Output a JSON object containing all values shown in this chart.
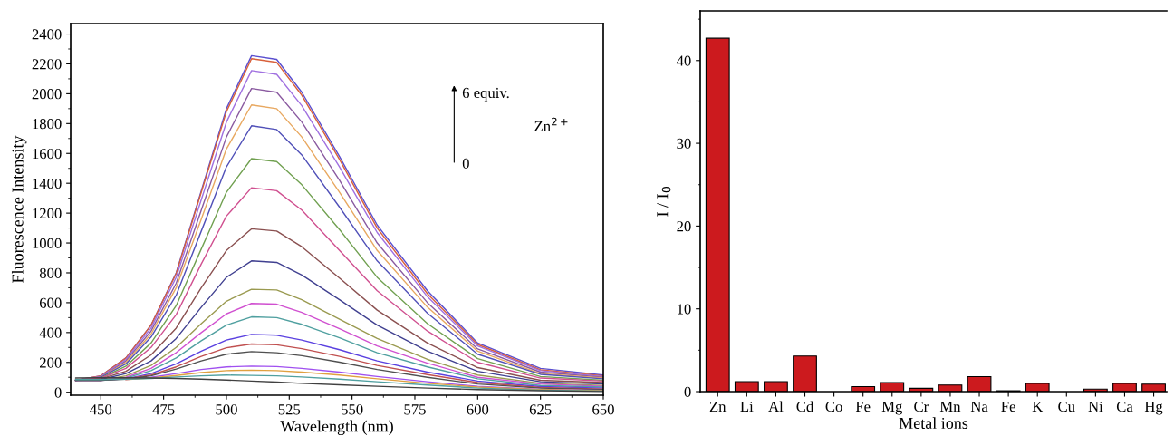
{
  "chart_data": [
    {
      "type": "line",
      "xlabel": "Wavelength (nm)",
      "ylabel": "Fluorescence Intensity",
      "x": [
        440,
        450,
        460,
        470,
        480,
        490,
        500,
        510,
        520,
        530,
        545,
        560,
        580,
        600,
        625,
        650
      ],
      "xlim": [
        438,
        650
      ],
      "ylim": [
        -20,
        2470
      ],
      "xticks": [
        450,
        475,
        500,
        525,
        550,
        575,
        600,
        625,
        650
      ],
      "yticks": [
        0,
        200,
        400,
        600,
        800,
        1000,
        1200,
        1400,
        1600,
        1800,
        2000,
        2200,
        2400
      ],
      "grid": false,
      "marker": "none",
      "line_style": "solid",
      "annotations": [
        "6 equiv.",
        "0",
        "Zn$^{2+}$"
      ],
      "series": [
        {
          "color": "#5a4fcf",
          "values": [
            80,
            110,
            230,
            450,
            800,
            1350,
            1900,
            2255,
            2230,
            2010,
            1580,
            1120,
            680,
            330,
            160,
            115
          ]
        },
        {
          "color": "#d8603a",
          "values": [
            80,
            110,
            230,
            450,
            795,
            1340,
            1880,
            2235,
            2210,
            1990,
            1560,
            1100,
            660,
            320,
            150,
            110
          ]
        },
        {
          "color": "#a070e0",
          "values": [
            80,
            105,
            220,
            430,
            770,
            1290,
            1810,
            2155,
            2130,
            1920,
            1510,
            1070,
            640,
            310,
            145,
            105
          ]
        },
        {
          "color": "#8a5aa0",
          "values": [
            80,
            100,
            210,
            410,
            730,
            1220,
            1710,
            2035,
            2010,
            1810,
            1420,
            1000,
            600,
            290,
            135,
            100
          ]
        },
        {
          "color": "#e8a860",
          "values": [
            80,
            100,
            200,
            390,
            700,
            1160,
            1630,
            1925,
            1900,
            1710,
            1340,
            950,
            570,
            275,
            125,
            95
          ]
        },
        {
          "color": "#5050b8",
          "values": [
            80,
            100,
            190,
            370,
            650,
            1080,
            1510,
            1785,
            1760,
            1590,
            1240,
            880,
            530,
            255,
            120,
            90
          ]
        },
        {
          "color": "#70a050",
          "values": [
            80,
            95,
            175,
            330,
            580,
            960,
            1340,
            1565,
            1545,
            1390,
            1090,
            770,
            460,
            225,
            105,
            80
          ]
        },
        {
          "color": "#d05090",
          "values": [
            80,
            95,
            160,
            300,
            520,
            860,
            1180,
            1370,
            1350,
            1220,
            950,
            680,
            410,
            200,
            95,
            75
          ]
        },
        {
          "color": "#8a5050",
          "values": [
            80,
            90,
            140,
            250,
            430,
            700,
            950,
            1095,
            1080,
            975,
            765,
            550,
            330,
            165,
            80,
            65
          ]
        },
        {
          "color": "#404090",
          "values": [
            80,
            85,
            125,
            210,
            360,
            570,
            770,
            880,
            870,
            785,
            620,
            450,
            275,
            140,
            70,
            55
          ]
        },
        {
          "color": "#9a9a50",
          "values": [
            80,
            80,
            110,
            180,
            300,
            460,
            610,
            690,
            685,
            620,
            490,
            360,
            220,
            115,
            60,
            45
          ]
        },
        {
          "color": "#d050d0",
          "values": [
            80,
            80,
            100,
            160,
            265,
            400,
            525,
            595,
            590,
            535,
            425,
            310,
            195,
            100,
            55,
            40
          ]
        },
        {
          "color": "#50a0a0",
          "values": [
            80,
            80,
            95,
            145,
            230,
            345,
            450,
            505,
            500,
            455,
            365,
            265,
            170,
            90,
            45,
            35
          ]
        },
        {
          "color": "#5a40e0",
          "values": [
            80,
            80,
            90,
            125,
            190,
            275,
            350,
            388,
            382,
            350,
            285,
            210,
            135,
            75,
            38,
            28
          ]
        },
        {
          "color": "#c05050",
          "values": [
            80,
            80,
            90,
            115,
            170,
            240,
            298,
            323,
            318,
            292,
            240,
            180,
            118,
            65,
            32,
            22
          ]
        },
        {
          "color": "#505050",
          "values": [
            80,
            80,
            88,
            110,
            155,
            210,
            255,
            272,
            265,
            245,
            202,
            152,
            100,
            55,
            28,
            18
          ]
        },
        {
          "color": "#a050f0",
          "values": [
            null,
            null,
            85,
            100,
            125,
            152,
            170,
            175,
            172,
            160,
            135,
            105,
            70,
            40,
            20,
            12
          ]
        },
        {
          "color": "#e0a040",
          "values": [
            null,
            null,
            85,
            95,
            112,
            132,
            145,
            148,
            145,
            135,
            115,
            90,
            60,
            35,
            18,
            10
          ]
        },
        {
          "color": "#50a0a0",
          "values": [
            85,
            85,
            88,
            92,
            102,
            110,
            115,
            113,
            110,
            102,
            88,
            70,
            48,
            28,
            14,
            8
          ]
        },
        {
          "color": "#404040",
          "values": [
            95,
            98,
            97,
            95,
            92,
            88,
            82,
            75,
            68,
            60,
            50,
            40,
            28,
            18,
            10,
            5
          ]
        }
      ]
    },
    {
      "type": "bar",
      "xlabel": "Metal ions",
      "ylabel": "I / I$_{0}$",
      "categories": [
        "Zn",
        "Li",
        "Al",
        "Cd",
        "Co",
        "Fe",
        "Mg",
        "Cr",
        "Mn",
        "Na",
        "Fe",
        "K",
        "Cu",
        "Ni",
        "Ca",
        "Hg"
      ],
      "values": [
        42.7,
        1.2,
        1.2,
        4.3,
        null,
        0.6,
        1.1,
        0.4,
        0.8,
        1.8,
        0.1,
        1.0,
        null,
        0.3,
        1.0,
        0.9
      ],
      "color": "#cc1a1e",
      "ylim": [
        0,
        46
      ],
      "yticks": [
        0,
        10,
        20,
        30,
        40
      ],
      "grid": false
    }
  ]
}
